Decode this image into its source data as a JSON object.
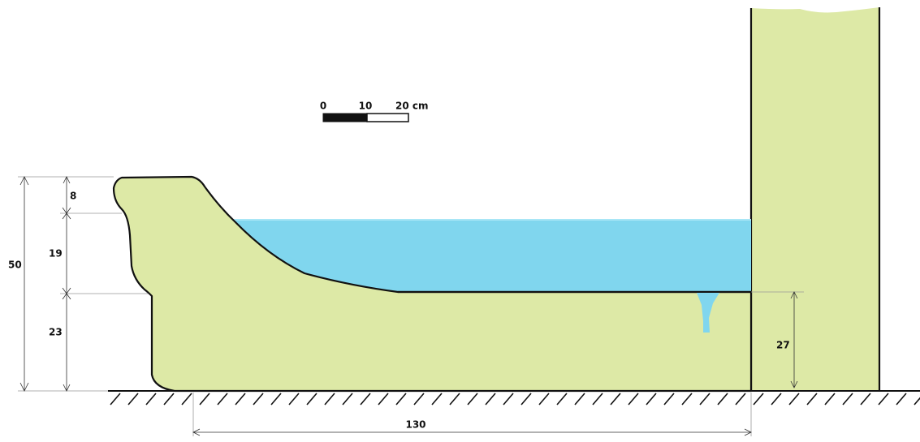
{
  "dimensions": {
    "total_height": "50",
    "lip_height": "8",
    "wall_height": "19",
    "base_height": "23",
    "water_level": "27",
    "length": "130"
  },
  "scale_bar": {
    "labels": [
      "0",
      "10",
      "20 cm"
    ]
  }
}
